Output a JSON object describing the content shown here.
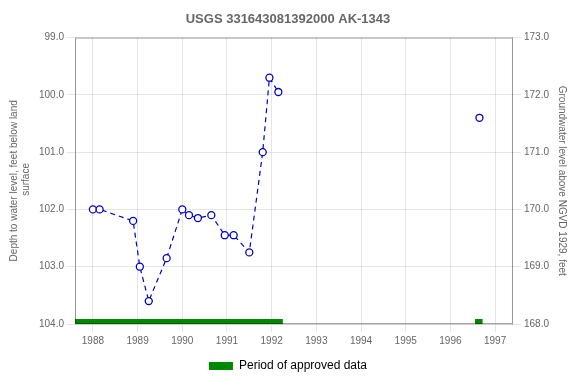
{
  "chart_data": {
    "type": "line",
    "title": "USGS 331643081392000 AK-1343",
    "y_label": "Depth to water level, feet below land\n surface",
    "y2_label": "Groundwater level above NGVD 1929, feet",
    "xlim": [
      1987.6,
      1997.4
    ],
    "xticks": [
      1988,
      1989,
      1990,
      1991,
      1992,
      1993,
      1994,
      1995,
      1996,
      1997
    ],
    "ylim": [
      104.0,
      99.0
    ],
    "yticks": [
      {
        "value": 99.0,
        "label": "99.0"
      },
      {
        "value": 100.0,
        "label": "100.0"
      },
      {
        "value": 101.0,
        "label": "101.0"
      },
      {
        "value": 102.0,
        "label": "102.0"
      },
      {
        "value": 103.0,
        "label": "103.0"
      },
      {
        "value": 104.0,
        "label": "104.0"
      }
    ],
    "y2lim": [
      168.0,
      173.0
    ],
    "y2ticks": [
      {
        "value": 173.0,
        "label": "173.0"
      },
      {
        "value": 172.0,
        "label": "172.0"
      },
      {
        "value": 171.0,
        "label": "171.0"
      },
      {
        "value": 170.0,
        "label": "170.0"
      },
      {
        "value": 169.0,
        "label": "169.0"
      },
      {
        "value": 168.0,
        "label": "168.0"
      }
    ],
    "grid": true,
    "legend": "bottom",
    "series": [
      {
        "x": [
          1988.0,
          1988.15,
          1988.9,
          1989.05,
          1989.25,
          1989.65,
          1990.0,
          1990.15,
          1990.35,
          1990.65,
          1990.95,
          1991.15,
          1991.5,
          1991.8,
          1991.95,
          1992.15
        ],
        "values": [
          102.0,
          102.0,
          102.2,
          103.0,
          103.6,
          102.85,
          102.0,
          102.1,
          102.15,
          102.1,
          102.45,
          102.45,
          102.75,
          101.0,
          99.7,
          99.95
        ],
        "color": "#0000CC",
        "line_style": "dashed",
        "marker": "open_circle"
      },
      {
        "x": [
          1996.65
        ],
        "values": [
          100.4
        ],
        "color": "#0000CC",
        "line_style": "none",
        "marker": "open_circle"
      },
      {
        "name": "Period of approved data",
        "type": "period",
        "color": "#008800",
        "periods": [
          [
            1987.6,
            1992.25
          ],
          [
            1996.55,
            1996.72
          ]
        ]
      }
    ]
  }
}
